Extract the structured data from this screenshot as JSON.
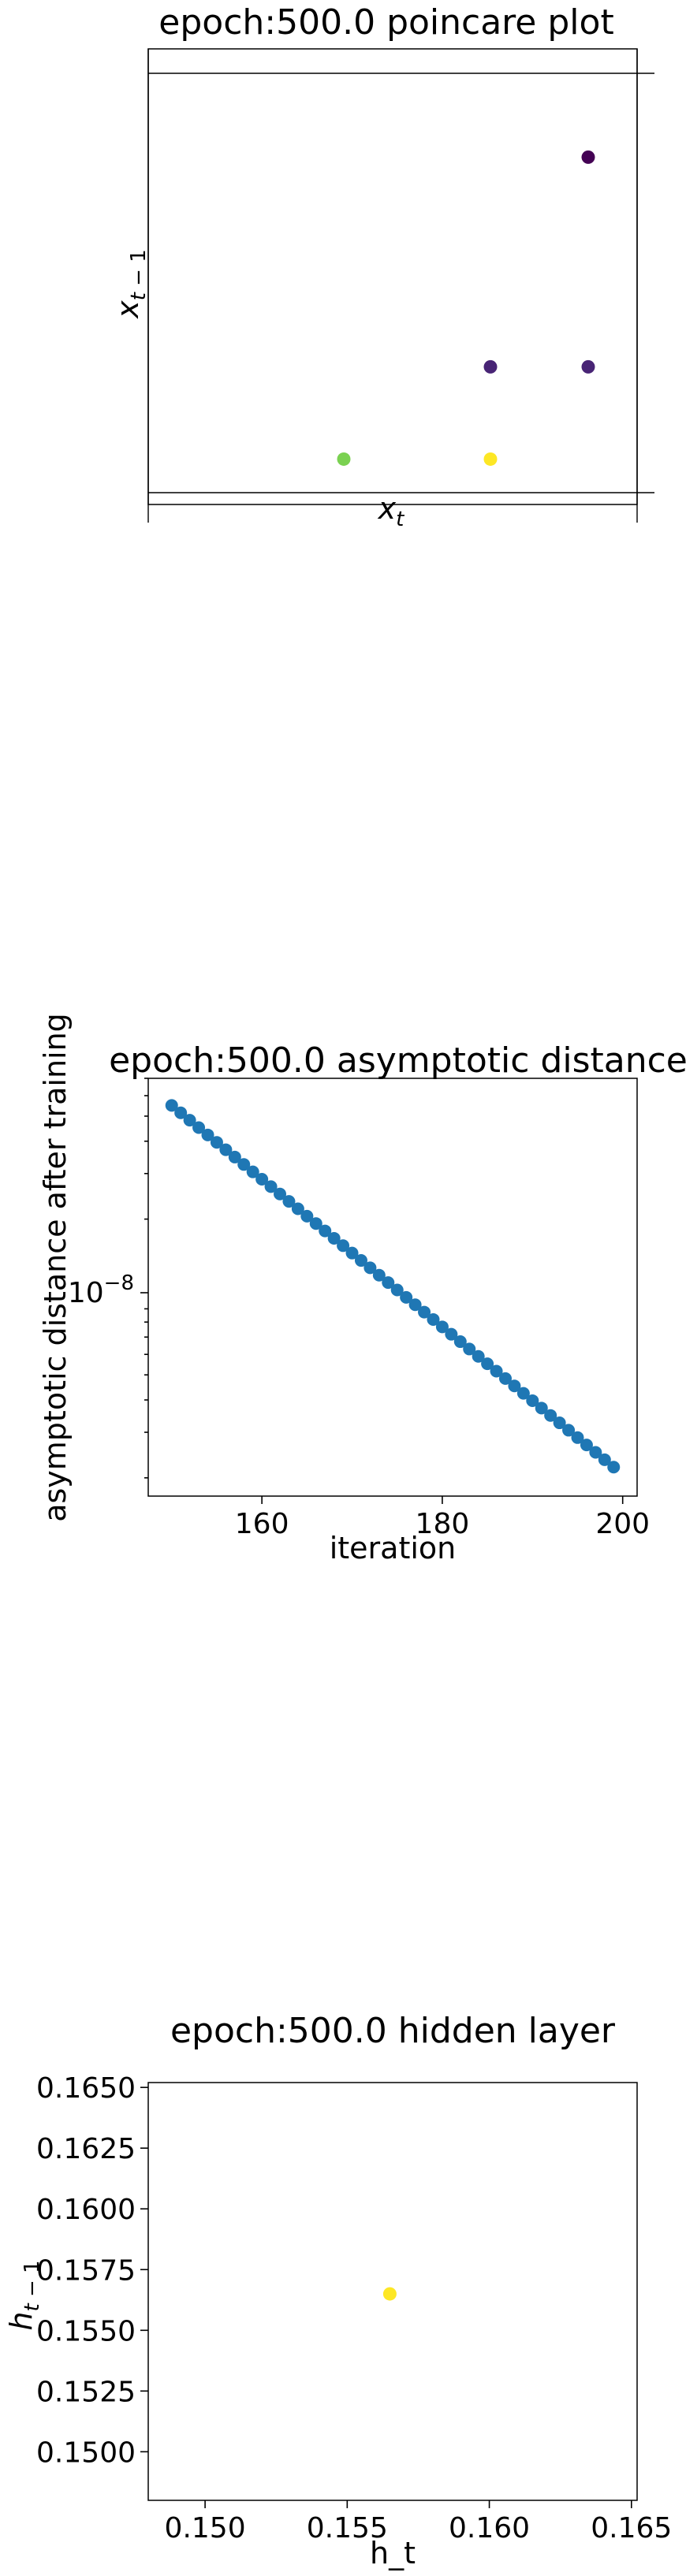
{
  "colors": {
    "poincare_dark": "#440154",
    "poincare_purple": "#482475",
    "poincare_green": "#7ad151",
    "poincare_yellow": "#fde725",
    "scatter_blue": "#1f77b4",
    "hidden_yellow": "#fde725",
    "axes": "#000000",
    "background": "#ffffff"
  },
  "chart_data": [
    {
      "type": "scatter",
      "title": "epoch:500.0 poincare plot",
      "xlabel": "x_t",
      "ylabel": "x_{t-1}",
      "grid": false,
      "axis_ticks_visible": false,
      "points": [
        {
          "x": 0.4,
          "y": 0.08,
          "color": "#7ad151"
        },
        {
          "x": 0.7,
          "y": 0.08,
          "color": "#fde725"
        },
        {
          "x": 0.7,
          "y": 0.3,
          "color": "#482475"
        },
        {
          "x": 0.9,
          "y": 0.3,
          "color": "#482475"
        },
        {
          "x": 0.9,
          "y": 0.8,
          "color": "#440154"
        }
      ],
      "reference_lines": {
        "horizontal": [
          0.0,
          1.0
        ],
        "vertical": [
          0.0,
          1.0
        ]
      }
    },
    {
      "type": "scatter",
      "title": "epoch:500.0 asymptotic distance",
      "xlabel": "iteration",
      "ylabel": "asymptotic distance after training",
      "yscale": "log",
      "xlim": [
        147.4,
        201.6
      ],
      "x_ticks": [
        160,
        180,
        200
      ],
      "x_tick_labels": [
        "160",
        "180",
        "200"
      ],
      "y_tick_label": "10^-8",
      "x": [
        150,
        151,
        152,
        153,
        154,
        155,
        156,
        157,
        158,
        159,
        160,
        161,
        162,
        163,
        164,
        165,
        166,
        167,
        168,
        169,
        170,
        171,
        172,
        173,
        174,
        175,
        176,
        177,
        178,
        179,
        180,
        181,
        182,
        183,
        184,
        185,
        186,
        187,
        188,
        189,
        190,
        191,
        192,
        193,
        194,
        195,
        196,
        197,
        198,
        199
      ],
      "y_first": 5.5e-08,
      "y_last": 2.2e-09,
      "ylim": [
        1.7e-09,
        7e-08
      ]
    },
    {
      "type": "scatter",
      "title": "epoch:500.0 hidden layer",
      "xlabel": "h_t",
      "ylabel": "h_{t-1}",
      "xlim": [
        0.148,
        0.1652
      ],
      "ylim": [
        0.148,
        0.1652
      ],
      "x_ticks": [
        0.15,
        0.155,
        0.16,
        0.165
      ],
      "x_tick_labels": [
        "0.150",
        "0.155",
        "0.160",
        "0.165"
      ],
      "y_ticks": [
        0.15,
        0.1525,
        0.155,
        0.1575,
        0.16,
        0.1625,
        0.165
      ],
      "y_tick_labels": [
        "0.1500",
        "0.1525",
        "0.1550",
        "0.1575",
        "0.1600",
        "0.1625",
        "0.1650"
      ],
      "points": [
        {
          "x": 0.1565,
          "y": 0.1565,
          "color": "#fde725"
        }
      ]
    }
  ]
}
